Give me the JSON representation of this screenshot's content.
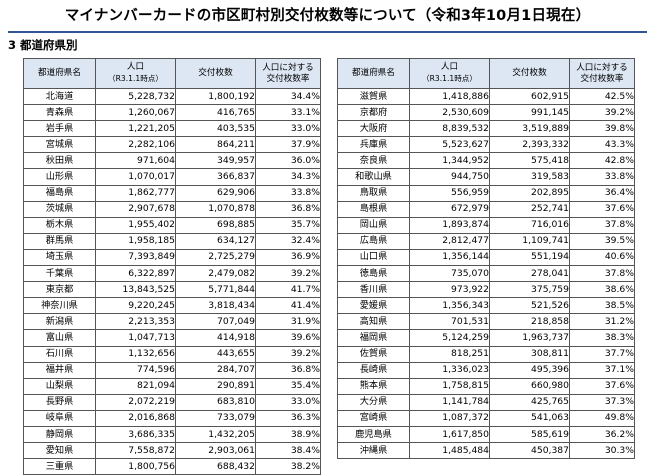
{
  "title": "マイナンバーカードの市区町村別交付枚数等について（令和3年10月1日現在）",
  "section": "3 都道府県別",
  "headers": {
    "name": "都道府県名",
    "population": "人口",
    "population_sub": "（R3.1.1時点）",
    "issued": "交付枚数",
    "rate_line1": "人口に対する",
    "rate_line2": "交付枚数率"
  },
  "left_rows": [
    {
      "name": "北海道",
      "population": "5,228,732",
      "issued": "1,800,192",
      "rate": "34.4%"
    },
    {
      "name": "青森県",
      "population": "1,260,067",
      "issued": "416,765",
      "rate": "33.1%"
    },
    {
      "name": "岩手県",
      "population": "1,221,205",
      "issued": "403,535",
      "rate": "33.0%"
    },
    {
      "name": "宮城県",
      "population": "2,282,106",
      "issued": "864,211",
      "rate": "37.9%"
    },
    {
      "name": "秋田県",
      "population": "971,604",
      "issued": "349,957",
      "rate": "36.0%"
    },
    {
      "name": "山形県",
      "population": "1,070,017",
      "issued": "366,837",
      "rate": "34.3%"
    },
    {
      "name": "福島県",
      "population": "1,862,777",
      "issued": "629,906",
      "rate": "33.8%"
    },
    {
      "name": "茨城県",
      "population": "2,907,678",
      "issued": "1,070,878",
      "rate": "36.8%"
    },
    {
      "name": "栃木県",
      "population": "1,955,402",
      "issued": "698,885",
      "rate": "35.7%"
    },
    {
      "name": "群馬県",
      "population": "1,958,185",
      "issued": "634,127",
      "rate": "32.4%"
    },
    {
      "name": "埼玉県",
      "population": "7,393,849",
      "issued": "2,725,279",
      "rate": "36.9%"
    },
    {
      "name": "千葉県",
      "population": "6,322,897",
      "issued": "2,479,082",
      "rate": "39.2%"
    },
    {
      "name": "東京都",
      "population": "13,843,525",
      "issued": "5,771,844",
      "rate": "41.7%"
    },
    {
      "name": "神奈川県",
      "population": "9,220,245",
      "issued": "3,818,434",
      "rate": "41.4%"
    },
    {
      "name": "新潟県",
      "population": "2,213,353",
      "issued": "707,049",
      "rate": "31.9%"
    },
    {
      "name": "富山県",
      "population": "1,047,713",
      "issued": "414,918",
      "rate": "39.6%"
    },
    {
      "name": "石川県",
      "population": "1,132,656",
      "issued": "443,655",
      "rate": "39.2%"
    },
    {
      "name": "福井県",
      "population": "774,596",
      "issued": "284,707",
      "rate": "36.8%"
    },
    {
      "name": "山梨県",
      "population": "821,094",
      "issued": "290,891",
      "rate": "35.4%"
    },
    {
      "name": "長野県",
      "population": "2,072,219",
      "issued": "683,810",
      "rate": "33.0%"
    },
    {
      "name": "岐阜県",
      "population": "2,016,868",
      "issued": "733,079",
      "rate": "36.3%"
    },
    {
      "name": "静岡県",
      "population": "3,686,335",
      "issued": "1,432,205",
      "rate": "38.9%"
    },
    {
      "name": "愛知県",
      "population": "7,558,872",
      "issued": "2,903,061",
      "rate": "38.4%"
    },
    {
      "name": "三重県",
      "population": "1,800,756",
      "issued": "688,432",
      "rate": "38.2%"
    }
  ],
  "right_rows": [
    {
      "name": "滋賀県",
      "population": "1,418,886",
      "issued": "602,915",
      "rate": "42.5%"
    },
    {
      "name": "京都府",
      "population": "2,530,609",
      "issued": "991,145",
      "rate": "39.2%"
    },
    {
      "name": "大阪府",
      "population": "8,839,532",
      "issued": "3,519,889",
      "rate": "39.8%"
    },
    {
      "name": "兵庫県",
      "population": "5,523,627",
      "issued": "2,393,332",
      "rate": "43.3%"
    },
    {
      "name": "奈良県",
      "population": "1,344,952",
      "issued": "575,418",
      "rate": "42.8%"
    },
    {
      "name": "和歌山県",
      "population": "944,750",
      "issued": "319,583",
      "rate": "33.8%"
    },
    {
      "name": "鳥取県",
      "population": "556,959",
      "issued": "202,895",
      "rate": "36.4%"
    },
    {
      "name": "島根県",
      "population": "672,979",
      "issued": "252,741",
      "rate": "37.6%"
    },
    {
      "name": "岡山県",
      "population": "1,893,874",
      "issued": "716,016",
      "rate": "37.8%"
    },
    {
      "name": "広島県",
      "population": "2,812,477",
      "issued": "1,109,741",
      "rate": "39.5%"
    },
    {
      "name": "山口県",
      "population": "1,356,144",
      "issued": "551,194",
      "rate": "40.6%"
    },
    {
      "name": "徳島県",
      "population": "735,070",
      "issued": "278,041",
      "rate": "37.8%"
    },
    {
      "name": "香川県",
      "population": "973,922",
      "issued": "375,759",
      "rate": "38.6%"
    },
    {
      "name": "愛媛県",
      "population": "1,356,343",
      "issued": "521,526",
      "rate": "38.5%"
    },
    {
      "name": "高知県",
      "population": "701,531",
      "issued": "218,858",
      "rate": "31.2%"
    },
    {
      "name": "福岡県",
      "population": "5,124,259",
      "issued": "1,963,737",
      "rate": "38.3%"
    },
    {
      "name": "佐賀県",
      "population": "818,251",
      "issued": "308,811",
      "rate": "37.7%"
    },
    {
      "name": "長崎県",
      "population": "1,336,023",
      "issued": "495,396",
      "rate": "37.1%"
    },
    {
      "name": "熊本県",
      "population": "1,758,815",
      "issued": "660,980",
      "rate": "37.6%"
    },
    {
      "name": "大分県",
      "population": "1,141,784",
      "issued": "425,765",
      "rate": "37.3%"
    },
    {
      "name": "宮崎県",
      "population": "1,087,372",
      "issued": "541,063",
      "rate": "49.8%"
    },
    {
      "name": "鹿児島県",
      "population": "1,617,850",
      "issued": "585,619",
      "rate": "36.2%"
    },
    {
      "name": "沖縄県",
      "population": "1,485,484",
      "issued": "450,387",
      "rate": "30.3%"
    }
  ]
}
